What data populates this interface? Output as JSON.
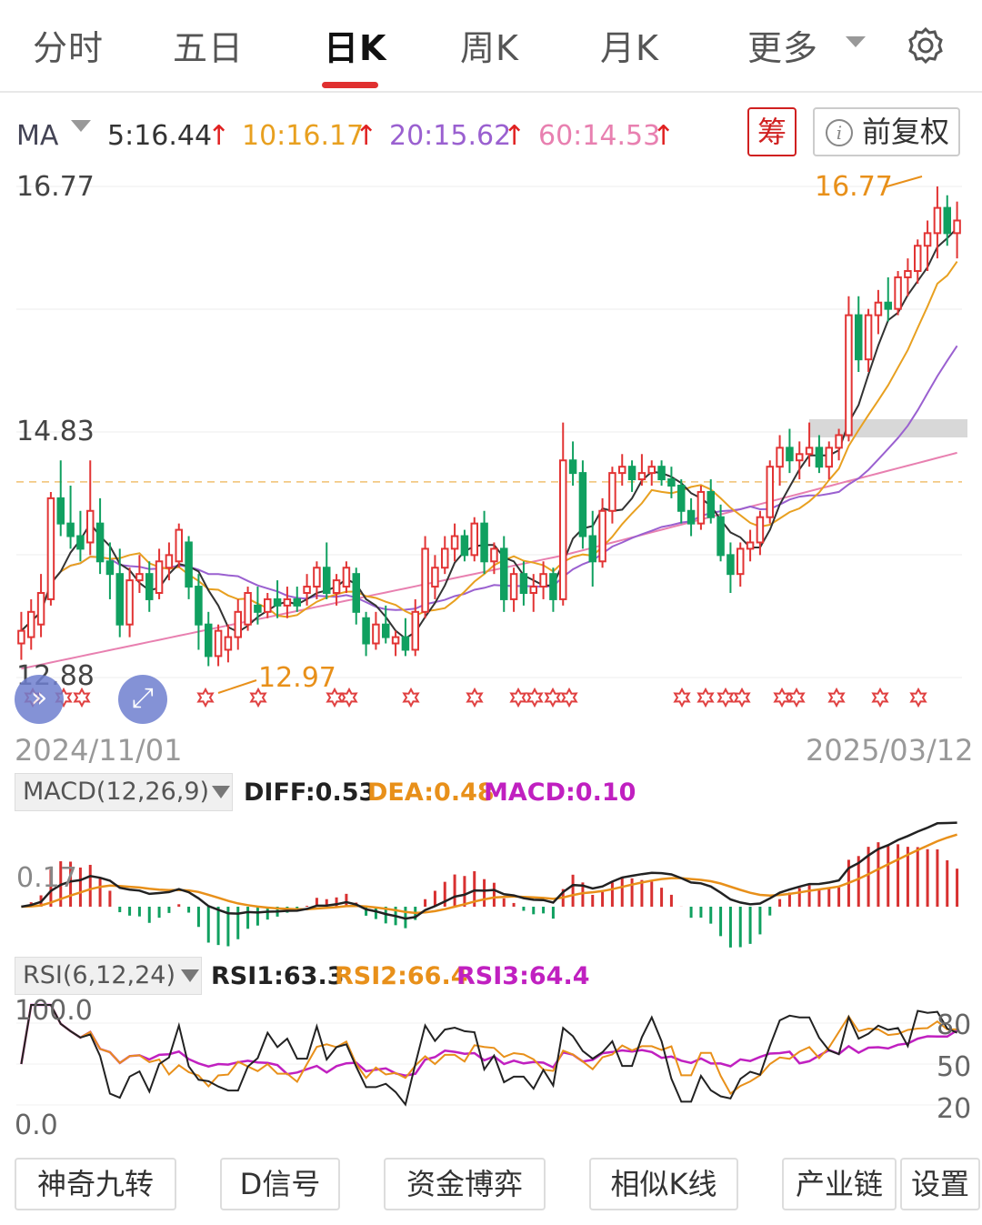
{
  "tabs": [
    {
      "label": "分时"
    },
    {
      "label": "五日"
    },
    {
      "label": "日K"
    },
    {
      "label": "周K"
    },
    {
      "label": "月K"
    },
    {
      "label": "更多"
    }
  ],
  "active_tab": "日K",
  "ma_bar": {
    "label": "MA",
    "ma5": "5:16.44",
    "ma10": "10:16.17",
    "ma20": "20:15.62",
    "ma60": "60:14.53",
    "up_arrow": "↑",
    "colors": {
      "ma5": "#333333",
      "ma10": "#e8a020",
      "ma20": "#9a60d0",
      "ma60": "#e880b0",
      "arrow": "#e02020"
    }
  },
  "chou_label": "筹",
  "fuquan_label": "前复权",
  "info_icon": "i",
  "price_axis": {
    "top": "16.77",
    "mid": "14.83",
    "bottom": "12.88"
  },
  "annotations": {
    "high": "16.77",
    "low": "12.97"
  },
  "dates": {
    "start": "2024/11/01",
    "end": "2025/03/12"
  },
  "macd": {
    "select_label": "MACD(12,26,9)",
    "diff": "DIFF:0.53",
    "dea": "DEA:0.48",
    "macd": "MACD:0.10",
    "axis_label": "0.17",
    "colors": {
      "diff": "#222222",
      "dea": "#e8901a",
      "macd": "#c020c0"
    }
  },
  "rsi": {
    "select_label": "RSI(6,12,24)",
    "rsi1": "RSI1:63.3",
    "rsi2": "RSI2:66.4",
    "rsi3": "RSI3:64.4",
    "axis_top": "100.0",
    "axis_bottom": "0.0",
    "right_axis": [
      "80",
      "50",
      "20"
    ],
    "colors": {
      "rsi1": "#222222",
      "rsi2": "#e8901a",
      "rsi3": "#c020c0"
    }
  },
  "bottom_buttons": [
    {
      "label": "神奇九转"
    },
    {
      "label": "D信号"
    },
    {
      "label": "资金博弈"
    },
    {
      "label": "相似K线"
    },
    {
      "label": "产业链"
    },
    {
      "label": "设置"
    }
  ],
  "fab_buttons": {
    "expand": "»",
    "fullscreen": "⤢"
  },
  "icons": {
    "settings": "gear-icon",
    "dropdown": "chevron-down-icon",
    "nine_turn_marker": "star-icon"
  },
  "chart_data": {
    "type": "candlestick",
    "title": "",
    "date_range": [
      "2024/11/01",
      "2025/03/12"
    ],
    "ylim": [
      12.88,
      16.77
    ],
    "high": 16.77,
    "low": 12.97,
    "reference_price": 14.43,
    "colors": {
      "up": "#e23434",
      "down": "#10a060"
    },
    "candles": [
      {
        "o": 13.15,
        "h": 13.4,
        "l": 13.02,
        "c": 13.25
      },
      {
        "o": 13.2,
        "h": 13.5,
        "l": 13.1,
        "c": 13.4
      },
      {
        "o": 13.3,
        "h": 13.7,
        "l": 13.2,
        "c": 13.55
      },
      {
        "o": 13.5,
        "h": 14.35,
        "l": 13.45,
        "c": 14.3
      },
      {
        "o": 14.3,
        "h": 14.6,
        "l": 14.0,
        "c": 14.1
      },
      {
        "o": 14.1,
        "h": 14.4,
        "l": 13.9,
        "c": 14.0
      },
      {
        "o": 14.0,
        "h": 14.2,
        "l": 13.8,
        "c": 13.9
      },
      {
        "o": 13.95,
        "h": 14.6,
        "l": 13.85,
        "c": 14.2
      },
      {
        "o": 14.1,
        "h": 14.3,
        "l": 13.7,
        "c": 13.8
      },
      {
        "o": 13.8,
        "h": 13.95,
        "l": 13.5,
        "c": 13.7
      },
      {
        "o": 13.7,
        "h": 13.9,
        "l": 13.2,
        "c": 13.3
      },
      {
        "o": 13.3,
        "h": 13.75,
        "l": 13.2,
        "c": 13.65
      },
      {
        "o": 13.65,
        "h": 13.85,
        "l": 13.55,
        "c": 13.7
      },
      {
        "o": 13.7,
        "h": 13.8,
        "l": 13.4,
        "c": 13.5
      },
      {
        "o": 13.55,
        "h": 13.9,
        "l": 13.5,
        "c": 13.8
      },
      {
        "o": 13.75,
        "h": 13.95,
        "l": 13.65,
        "c": 13.85
      },
      {
        "o": 13.8,
        "h": 14.1,
        "l": 13.75,
        "c": 14.05
      },
      {
        "o": 13.95,
        "h": 14.0,
        "l": 13.5,
        "c": 13.6
      },
      {
        "o": 13.6,
        "h": 13.7,
        "l": 13.1,
        "c": 13.3
      },
      {
        "o": 13.3,
        "h": 13.4,
        "l": 12.97,
        "c": 13.05
      },
      {
        "o": 13.05,
        "h": 13.3,
        "l": 12.97,
        "c": 13.25
      },
      {
        "o": 13.1,
        "h": 13.3,
        "l": 13.0,
        "c": 13.2
      },
      {
        "o": 13.2,
        "h": 13.5,
        "l": 13.1,
        "c": 13.4
      },
      {
        "o": 13.3,
        "h": 13.6,
        "l": 13.25,
        "c": 13.55
      },
      {
        "o": 13.45,
        "h": 13.6,
        "l": 13.3,
        "c": 13.4
      },
      {
        "o": 13.4,
        "h": 13.55,
        "l": 13.35,
        "c": 13.5
      },
      {
        "o": 13.5,
        "h": 13.65,
        "l": 13.35,
        "c": 13.45
      },
      {
        "o": 13.45,
        "h": 13.6,
        "l": 13.35,
        "c": 13.5
      },
      {
        "o": 13.5,
        "h": 13.6,
        "l": 13.4,
        "c": 13.45
      },
      {
        "o": 13.55,
        "h": 13.7,
        "l": 13.45,
        "c": 13.6
      },
      {
        "o": 13.6,
        "h": 13.8,
        "l": 13.5,
        "c": 13.75
      },
      {
        "o": 13.75,
        "h": 13.95,
        "l": 13.5,
        "c": 13.55
      },
      {
        "o": 13.55,
        "h": 13.7,
        "l": 13.45,
        "c": 13.65
      },
      {
        "o": 13.6,
        "h": 13.8,
        "l": 13.55,
        "c": 13.75
      },
      {
        "o": 13.7,
        "h": 13.75,
        "l": 13.3,
        "c": 13.4
      },
      {
        "o": 13.35,
        "h": 13.4,
        "l": 13.05,
        "c": 13.15
      },
      {
        "o": 13.15,
        "h": 13.4,
        "l": 13.1,
        "c": 13.3
      },
      {
        "o": 13.3,
        "h": 13.45,
        "l": 13.15,
        "c": 13.2
      },
      {
        "o": 13.15,
        "h": 13.25,
        "l": 13.05,
        "c": 13.2
      },
      {
        "o": 13.2,
        "h": 13.35,
        "l": 13.05,
        "c": 13.1
      },
      {
        "o": 13.1,
        "h": 13.5,
        "l": 13.05,
        "c": 13.4
      },
      {
        "o": 13.4,
        "h": 14.0,
        "l": 13.35,
        "c": 13.9
      },
      {
        "o": 13.6,
        "h": 13.85,
        "l": 13.5,
        "c": 13.75
      },
      {
        "o": 13.75,
        "h": 14.0,
        "l": 13.7,
        "c": 13.9
      },
      {
        "o": 13.9,
        "h": 14.1,
        "l": 13.8,
        "c": 14.0
      },
      {
        "o": 14.0,
        "h": 14.05,
        "l": 13.8,
        "c": 13.85
      },
      {
        "o": 13.85,
        "h": 14.15,
        "l": 13.8,
        "c": 14.1
      },
      {
        "o": 14.1,
        "h": 14.2,
        "l": 13.7,
        "c": 13.8
      },
      {
        "o": 13.8,
        "h": 13.95,
        "l": 13.7,
        "c": 13.9
      },
      {
        "o": 13.9,
        "h": 14.0,
        "l": 13.4,
        "c": 13.5
      },
      {
        "o": 13.5,
        "h": 13.75,
        "l": 13.4,
        "c": 13.7
      },
      {
        "o": 13.7,
        "h": 13.8,
        "l": 13.45,
        "c": 13.55
      },
      {
        "o": 13.55,
        "h": 13.7,
        "l": 13.4,
        "c": 13.6
      },
      {
        "o": 13.6,
        "h": 13.8,
        "l": 13.5,
        "c": 13.7
      },
      {
        "o": 13.7,
        "h": 13.75,
        "l": 13.4,
        "c": 13.5
      },
      {
        "o": 13.5,
        "h": 14.9,
        "l": 13.45,
        "c": 14.6
      },
      {
        "o": 14.6,
        "h": 14.75,
        "l": 14.4,
        "c": 14.5
      },
      {
        "o": 14.5,
        "h": 14.6,
        "l": 13.9,
        "c": 14.0
      },
      {
        "o": 14.0,
        "h": 14.2,
        "l": 13.6,
        "c": 13.8
      },
      {
        "o": 13.8,
        "h": 14.3,
        "l": 13.75,
        "c": 14.2
      },
      {
        "o": 14.2,
        "h": 14.55,
        "l": 14.1,
        "c": 14.5
      },
      {
        "o": 14.5,
        "h": 14.65,
        "l": 14.4,
        "c": 14.55
      },
      {
        "o": 14.55,
        "h": 14.6,
        "l": 14.35,
        "c": 14.45
      },
      {
        "o": 14.45,
        "h": 14.65,
        "l": 14.4,
        "c": 14.5
      },
      {
        "o": 14.5,
        "h": 14.6,
        "l": 14.4,
        "c": 14.55
      },
      {
        "o": 14.55,
        "h": 14.6,
        "l": 14.4,
        "c": 14.45
      },
      {
        "o": 14.45,
        "h": 14.55,
        "l": 14.3,
        "c": 14.4
      },
      {
        "o": 14.4,
        "h": 14.45,
        "l": 14.1,
        "c": 14.2
      },
      {
        "o": 14.2,
        "h": 14.3,
        "l": 14.0,
        "c": 14.1
      },
      {
        "o": 14.1,
        "h": 14.4,
        "l": 14.05,
        "c": 14.35
      },
      {
        "o": 14.35,
        "h": 14.45,
        "l": 14.1,
        "c": 14.15
      },
      {
        "o": 14.15,
        "h": 14.25,
        "l": 13.8,
        "c": 13.85
      },
      {
        "o": 13.85,
        "h": 13.95,
        "l": 13.55,
        "c": 13.7
      },
      {
        "o": 13.7,
        "h": 13.95,
        "l": 13.6,
        "c": 13.9
      },
      {
        "o": 13.9,
        "h": 14.05,
        "l": 13.8,
        "c": 13.95
      },
      {
        "o": 13.95,
        "h": 14.2,
        "l": 13.85,
        "c": 14.15
      },
      {
        "o": 14.15,
        "h": 14.6,
        "l": 14.1,
        "c": 14.55
      },
      {
        "o": 14.55,
        "h": 14.8,
        "l": 14.4,
        "c": 14.7
      },
      {
        "o": 14.7,
        "h": 14.85,
        "l": 14.5,
        "c": 14.6
      },
      {
        "o": 14.6,
        "h": 14.75,
        "l": 14.45,
        "c": 14.65
      },
      {
        "o": 14.65,
        "h": 14.9,
        "l": 14.55,
        "c": 14.7
      },
      {
        "o": 14.7,
        "h": 14.8,
        "l": 14.5,
        "c": 14.55
      },
      {
        "o": 14.55,
        "h": 14.75,
        "l": 14.45,
        "c": 14.7
      },
      {
        "o": 14.7,
        "h": 14.85,
        "l": 14.6,
        "c": 14.8
      },
      {
        "o": 14.8,
        "h": 15.9,
        "l": 14.75,
        "c": 15.75
      },
      {
        "o": 15.75,
        "h": 15.9,
        "l": 15.3,
        "c": 15.4
      },
      {
        "o": 15.4,
        "h": 15.8,
        "l": 15.3,
        "c": 15.75
      },
      {
        "o": 15.75,
        "h": 15.95,
        "l": 15.6,
        "c": 15.85
      },
      {
        "o": 15.85,
        "h": 16.05,
        "l": 15.7,
        "c": 15.8
      },
      {
        "o": 15.8,
        "h": 16.1,
        "l": 15.75,
        "c": 16.05
      },
      {
        "o": 16.05,
        "h": 16.2,
        "l": 15.9,
        "c": 16.1
      },
      {
        "o": 16.1,
        "h": 16.35,
        "l": 16.0,
        "c": 16.3
      },
      {
        "o": 16.3,
        "h": 16.5,
        "l": 16.1,
        "c": 16.4
      },
      {
        "o": 16.4,
        "h": 16.77,
        "l": 16.2,
        "c": 16.6
      },
      {
        "o": 16.6,
        "h": 16.7,
        "l": 16.3,
        "c": 16.4
      },
      {
        "o": 16.4,
        "h": 16.65,
        "l": 16.2,
        "c": 16.5
      }
    ],
    "nine_turn_markers": 22
  }
}
